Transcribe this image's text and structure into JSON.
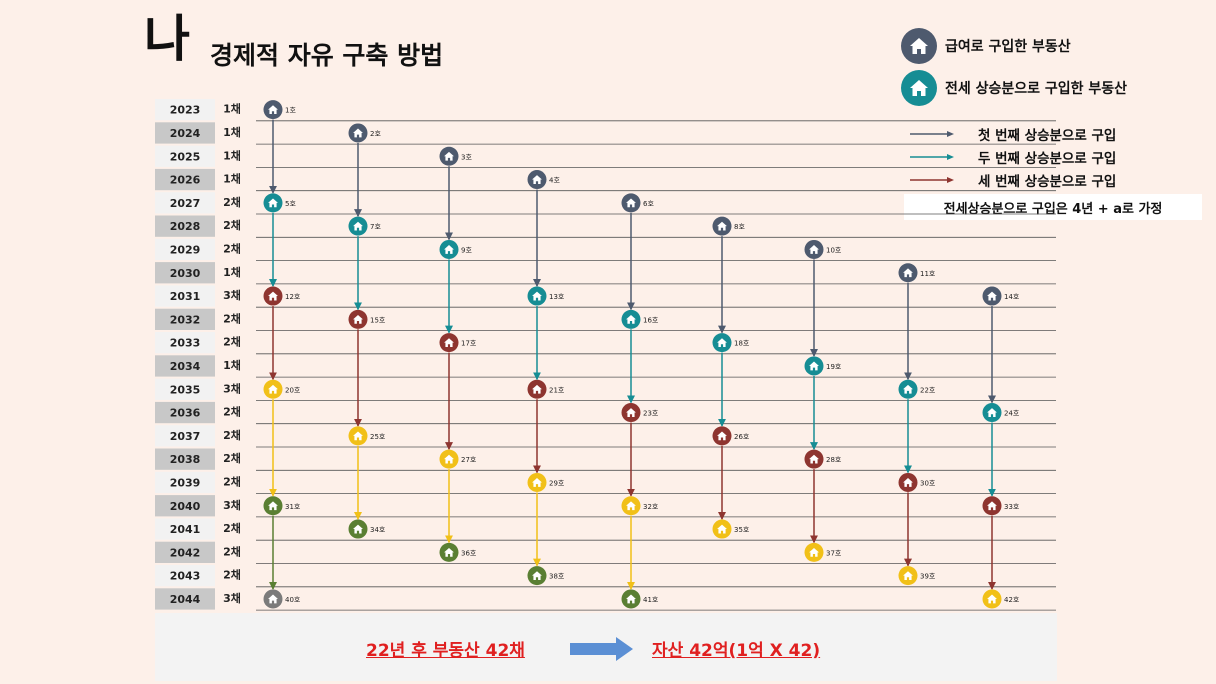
{
  "title": {
    "big": "나",
    "sub": "경제적 자유 구축 방법"
  },
  "colors": {
    "navy": "#4e5a6e",
    "teal": "#168d94",
    "brown": "#8e3530",
    "yellow": "#f1c018",
    "green": "#5a7f33",
    "gray": "#7b7b7b"
  },
  "legend": {
    "salary": "급여로 구입한 부동산",
    "jeonse": "전세 상승분으로 구입한 부동산",
    "arrow1": "첫 번째 상승분으로 구입",
    "arrow2": "두 번째 상승분으로 구입",
    "arrow3": "세 번째 상승분으로 구입",
    "note": "전세상승분으로 구입은 4년 + a로 가정"
  },
  "years": [
    {
      "year": "2023",
      "count": "1채"
    },
    {
      "year": "2024",
      "count": "1채"
    },
    {
      "year": "2025",
      "count": "1채"
    },
    {
      "year": "2026",
      "count": "1채"
    },
    {
      "year": "2027",
      "count": "2채"
    },
    {
      "year": "2028",
      "count": "2채"
    },
    {
      "year": "2029",
      "count": "2채"
    },
    {
      "year": "2030",
      "count": "1채"
    },
    {
      "year": "2031",
      "count": "3채"
    },
    {
      "year": "2032",
      "count": "2채"
    },
    {
      "year": "2033",
      "count": "2채"
    },
    {
      "year": "2034",
      "count": "1채"
    },
    {
      "year": "2035",
      "count": "3채"
    },
    {
      "year": "2036",
      "count": "2채"
    },
    {
      "year": "2037",
      "count": "2채"
    },
    {
      "year": "2038",
      "count": "2채"
    },
    {
      "year": "2039",
      "count": "2채"
    },
    {
      "year": "2040",
      "count": "3채"
    },
    {
      "year": "2041",
      "count": "2채"
    },
    {
      "year": "2042",
      "count": "2채"
    },
    {
      "year": "2043",
      "count": "2채"
    },
    {
      "year": "2044",
      "count": "3채"
    }
  ],
  "houses": [
    {
      "label": "1호",
      "col": 0,
      "row": 0,
      "color": "navy"
    },
    {
      "label": "2호",
      "col": 1,
      "row": 1,
      "color": "navy"
    },
    {
      "label": "3호",
      "col": 2,
      "row": 2,
      "color": "navy"
    },
    {
      "label": "4호",
      "col": 3,
      "row": 3,
      "color": "navy"
    },
    {
      "label": "5호",
      "col": 0,
      "row": 4,
      "color": "teal"
    },
    {
      "label": "6호",
      "col": 4,
      "row": 4,
      "color": "navy"
    },
    {
      "label": "7호",
      "col": 1,
      "row": 5,
      "color": "teal"
    },
    {
      "label": "8호",
      "col": 5,
      "row": 5,
      "color": "navy"
    },
    {
      "label": "9호",
      "col": 2,
      "row": 6,
      "color": "teal"
    },
    {
      "label": "10호",
      "col": 6,
      "row": 6,
      "color": "navy"
    },
    {
      "label": "11호",
      "col": 7,
      "row": 7,
      "color": "navy"
    },
    {
      "label": "12호",
      "col": 0,
      "row": 8,
      "color": "brown"
    },
    {
      "label": "13호",
      "col": 3,
      "row": 8,
      "color": "teal"
    },
    {
      "label": "14호",
      "col": 8,
      "row": 8,
      "color": "navy"
    },
    {
      "label": "15호",
      "col": 1,
      "row": 9,
      "color": "brown"
    },
    {
      "label": "16호",
      "col": 4,
      "row": 9,
      "color": "teal"
    },
    {
      "label": "17호",
      "col": 2,
      "row": 10,
      "color": "brown"
    },
    {
      "label": "18호",
      "col": 5,
      "row": 10,
      "color": "teal"
    },
    {
      "label": "19호",
      "col": 6,
      "row": 11,
      "color": "teal"
    },
    {
      "label": "20호",
      "col": 0,
      "row": 12,
      "color": "yellow"
    },
    {
      "label": "21호",
      "col": 3,
      "row": 12,
      "color": "brown"
    },
    {
      "label": "22호",
      "col": 7,
      "row": 12,
      "color": "teal"
    },
    {
      "label": "23호",
      "col": 4,
      "row": 13,
      "color": "brown"
    },
    {
      "label": "24호",
      "col": 8,
      "row": 13,
      "color": "teal"
    },
    {
      "label": "25호",
      "col": 1,
      "row": 14,
      "color": "yellow"
    },
    {
      "label": "26호",
      "col": 5,
      "row": 14,
      "color": "brown"
    },
    {
      "label": "27호",
      "col": 2,
      "row": 15,
      "color": "yellow"
    },
    {
      "label": "28호",
      "col": 6,
      "row": 15,
      "color": "brown"
    },
    {
      "label": "29호",
      "col": 3,
      "row": 16,
      "color": "yellow"
    },
    {
      "label": "30호",
      "col": 7,
      "row": 16,
      "color": "brown"
    },
    {
      "label": "31호",
      "col": 0,
      "row": 17,
      "color": "green"
    },
    {
      "label": "32호",
      "col": 4,
      "row": 17,
      "color": "yellow"
    },
    {
      "label": "33호",
      "col": 8,
      "row": 17,
      "color": "brown"
    },
    {
      "label": "34호",
      "col": 1,
      "row": 18,
      "color": "green"
    },
    {
      "label": "35호",
      "col": 5,
      "row": 18,
      "color": "yellow"
    },
    {
      "label": "36호",
      "col": 2,
      "row": 19,
      "color": "green"
    },
    {
      "label": "37호",
      "col": 6,
      "row": 19,
      "color": "yellow"
    },
    {
      "label": "38호",
      "col": 3,
      "row": 20,
      "color": "green"
    },
    {
      "label": "39호",
      "col": 7,
      "row": 20,
      "color": "yellow"
    },
    {
      "label": "40호",
      "col": 0,
      "row": 21,
      "color": "gray"
    },
    {
      "label": "41호",
      "col": 4,
      "row": 21,
      "color": "green"
    },
    {
      "label": "42호",
      "col": 8,
      "row": 21,
      "color": "yellow"
    }
  ],
  "links": [
    {
      "col": 0,
      "from": 0,
      "to": 4,
      "color": "navy"
    },
    {
      "col": 0,
      "from": 4,
      "to": 8,
      "color": "teal"
    },
    {
      "col": 0,
      "from": 8,
      "to": 12,
      "color": "brown"
    },
    {
      "col": 0,
      "from": 12,
      "to": 17,
      "color": "yellow"
    },
    {
      "col": 0,
      "from": 17,
      "to": 21,
      "color": "green"
    },
    {
      "col": 1,
      "from": 1,
      "to": 5,
      "color": "navy"
    },
    {
      "col": 1,
      "from": 5,
      "to": 9,
      "color": "teal"
    },
    {
      "col": 1,
      "from": 9,
      "to": 14,
      "color": "brown"
    },
    {
      "col": 1,
      "from": 14,
      "to": 18,
      "color": "yellow"
    },
    {
      "col": 2,
      "from": 2,
      "to": 6,
      "color": "navy"
    },
    {
      "col": 2,
      "from": 6,
      "to": 10,
      "color": "teal"
    },
    {
      "col": 2,
      "from": 10,
      "to": 15,
      "color": "brown"
    },
    {
      "col": 2,
      "from": 15,
      "to": 19,
      "color": "yellow"
    },
    {
      "col": 3,
      "from": 3,
      "to": 8,
      "color": "navy"
    },
    {
      "col": 3,
      "from": 8,
      "to": 12,
      "color": "teal"
    },
    {
      "col": 3,
      "from": 12,
      "to": 16,
      "color": "brown"
    },
    {
      "col": 3,
      "from": 16,
      "to": 20,
      "color": "yellow"
    },
    {
      "col": 4,
      "from": 4,
      "to": 9,
      "color": "navy"
    },
    {
      "col": 4,
      "from": 9,
      "to": 13,
      "color": "teal"
    },
    {
      "col": 4,
      "from": 13,
      "to": 17,
      "color": "brown"
    },
    {
      "col": 4,
      "from": 17,
      "to": 21,
      "color": "yellow"
    },
    {
      "col": 5,
      "from": 5,
      "to": 10,
      "color": "navy"
    },
    {
      "col": 5,
      "from": 10,
      "to": 14,
      "color": "teal"
    },
    {
      "col": 5,
      "from": 14,
      "to": 18,
      "color": "brown"
    },
    {
      "col": 6,
      "from": 6,
      "to": 11,
      "color": "navy"
    },
    {
      "col": 6,
      "from": 11,
      "to": 15,
      "color": "teal"
    },
    {
      "col": 6,
      "from": 15,
      "to": 19,
      "color": "brown"
    },
    {
      "col": 7,
      "from": 7,
      "to": 12,
      "color": "navy"
    },
    {
      "col": 7,
      "from": 12,
      "to": 16,
      "color": "teal"
    },
    {
      "col": 7,
      "from": 16,
      "to": 20,
      "color": "brown"
    },
    {
      "col": 8,
      "from": 8,
      "to": 13,
      "color": "navy"
    },
    {
      "col": 8,
      "from": 13,
      "to": 17,
      "color": "teal"
    },
    {
      "col": 8,
      "from": 17,
      "to": 21,
      "color": "brown"
    }
  ],
  "bottom": {
    "left": "22년 후 부동산 42채",
    "right": "자산 42억(1억 X 42)"
  }
}
